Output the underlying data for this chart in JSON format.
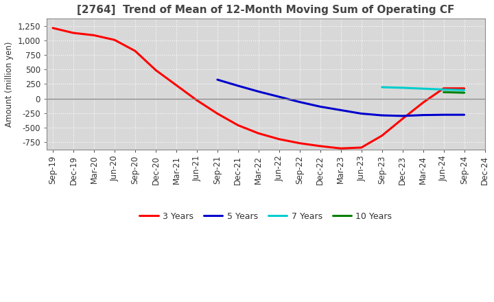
{
  "title": "[2764]  Trend of Mean of 12-Month Moving Sum of Operating CF",
  "ylabel": "Amount (million yen)",
  "fig_bg_color": "#ffffff",
  "plot_bg_color": "#d8d8d8",
  "grid_color": "#ffffff",
  "title_color": "#444444",
  "series": {
    "3years": {
      "color": "#ff0000",
      "label": "3 Years",
      "x": [
        0,
        1,
        2,
        3,
        4,
        5,
        6,
        7,
        8,
        9,
        10,
        11,
        12,
        13,
        14,
        15,
        16,
        17,
        18,
        19,
        20
      ],
      "y": [
        1215,
        1130,
        1090,
        1010,
        820,
        490,
        230,
        -30,
        -260,
        -460,
        -600,
        -700,
        -770,
        -820,
        -860,
        -845,
        -640,
        -350,
        -70,
        175,
        175
      ]
    },
    "5years": {
      "color": "#0000cc",
      "label": "5 Years",
      "x": [
        8,
        9,
        10,
        11,
        12,
        13,
        14,
        15,
        16,
        17,
        18,
        19,
        20
      ],
      "y": [
        325,
        220,
        120,
        30,
        -60,
        -140,
        -200,
        -260,
        -290,
        -300,
        -285,
        -280,
        -280
      ]
    },
    "7years": {
      "color": "#00cccc",
      "label": "7 Years",
      "x": [
        16,
        17,
        18,
        19,
        20
      ],
      "y": [
        195,
        185,
        170,
        155,
        145
      ]
    },
    "10years": {
      "color": "#008000",
      "label": "10 Years",
      "x": [
        19,
        20
      ],
      "y": [
        110,
        100
      ]
    }
  },
  "xtick_labels": [
    "Sep-19",
    "Dec-19",
    "Mar-20",
    "Jun-20",
    "Sep-20",
    "Dec-20",
    "Mar-21",
    "Jun-21",
    "Sep-21",
    "Dec-21",
    "Mar-22",
    "Jun-22",
    "Sep-22",
    "Dec-22",
    "Mar-23",
    "Jun-23",
    "Sep-23",
    "Dec-23",
    "Mar-24",
    "Jun-24",
    "Sep-24",
    "Dec-24"
  ],
  "n_xticks": 22,
  "ylim": [
    -875,
    1375
  ],
  "yticks": [
    -750,
    -500,
    -250,
    0,
    250,
    500,
    750,
    1000,
    1250
  ],
  "linewidth": 2.2,
  "legend_fontsize": 9,
  "axis_fontsize": 8.5,
  "ylabel_fontsize": 8.5,
  "title_fontsize": 11
}
